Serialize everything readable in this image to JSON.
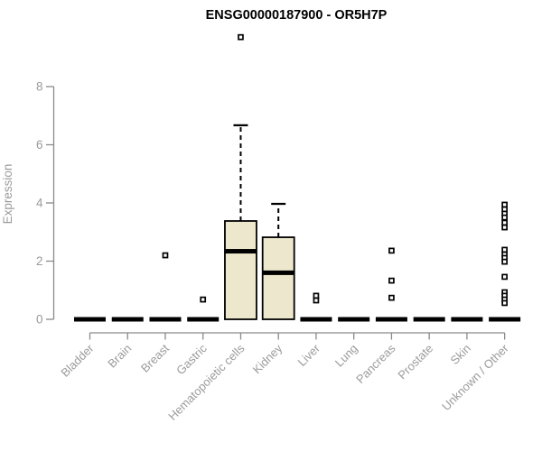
{
  "chart_data": {
    "type": "boxplot",
    "title": "ENSG00000187900 - OR5H7P",
    "ylabel": "Expression",
    "xlabel": "",
    "yticks": [
      0,
      2,
      4,
      6,
      8
    ],
    "ylim": [
      0,
      8
    ],
    "grid": false,
    "legend": null,
    "categories": [
      "Bladder",
      "Brain",
      "Breast",
      "Gastric",
      "Hematopoietic cells",
      "Kidney",
      "Liver",
      "Lung",
      "Pancreas",
      "Prostate",
      "Skin",
      "Unknown / Other"
    ],
    "series": [
      {
        "category": "Bladder",
        "q1": 0,
        "median": 0,
        "q3": 0,
        "whisker_low": 0,
        "whisker_high": 0,
        "outliers": []
      },
      {
        "category": "Brain",
        "q1": 0,
        "median": 0,
        "q3": 0,
        "whisker_low": 0,
        "whisker_high": 0,
        "outliers": []
      },
      {
        "category": "Breast",
        "q1": 0,
        "median": 0,
        "q3": 0,
        "whisker_low": 0,
        "whisker_high": 0,
        "outliers": [
          2.2
        ]
      },
      {
        "category": "Gastric",
        "q1": 0,
        "median": 0,
        "q3": 0,
        "whisker_low": 0,
        "whisker_high": 0,
        "outliers": [
          0.68
        ]
      },
      {
        "category": "Hematopoietic cells",
        "q1": 0,
        "median": 2.34,
        "q3": 3.38,
        "whisker_low": 0,
        "whisker_high": 6.67,
        "outliers": [
          9.7
        ]
      },
      {
        "category": "Kidney",
        "q1": 0,
        "median": 1.6,
        "q3": 2.82,
        "whisker_low": 0,
        "whisker_high": 3.97,
        "outliers": []
      },
      {
        "category": "Liver",
        "q1": 0,
        "median": 0,
        "q3": 0,
        "whisker_low": 0,
        "whisker_high": 0,
        "outliers": [
          0.81,
          0.65
        ]
      },
      {
        "category": "Lung",
        "q1": 0,
        "median": 0,
        "q3": 0,
        "whisker_low": 0,
        "whisker_high": 0,
        "outliers": []
      },
      {
        "category": "Pancreas",
        "q1": 0,
        "median": 0,
        "q3": 0,
        "whisker_low": 0,
        "whisker_high": 0,
        "outliers": [
          2.36,
          1.33,
          0.74
        ]
      },
      {
        "category": "Prostate",
        "q1": 0,
        "median": 0,
        "q3": 0,
        "whisker_low": 0,
        "whisker_high": 0,
        "outliers": []
      },
      {
        "category": "Skin",
        "q1": 0,
        "median": 0,
        "q3": 0,
        "whisker_low": 0,
        "whisker_high": 0,
        "outliers": []
      },
      {
        "category": "Unknown / Other",
        "q1": 0,
        "median": 0,
        "q3": 0,
        "whisker_low": 0,
        "whisker_high": 0,
        "outliers": [
          3.94,
          3.78,
          3.63,
          3.5,
          3.32,
          3.16,
          2.39,
          2.23,
          2.11,
          1.98,
          1.46,
          0.93,
          0.81,
          0.68,
          0.56
        ]
      }
    ],
    "colors": {
      "box_fill": "#ede8cd",
      "box_border": "#000000",
      "median": "#000000",
      "whisker": "#000000",
      "outlier_stroke": "#000000",
      "outlier_fill": "#ffffff",
      "axis": "#8a8a8a",
      "tick_label": "#9b9b9b",
      "title": "#000000"
    }
  }
}
